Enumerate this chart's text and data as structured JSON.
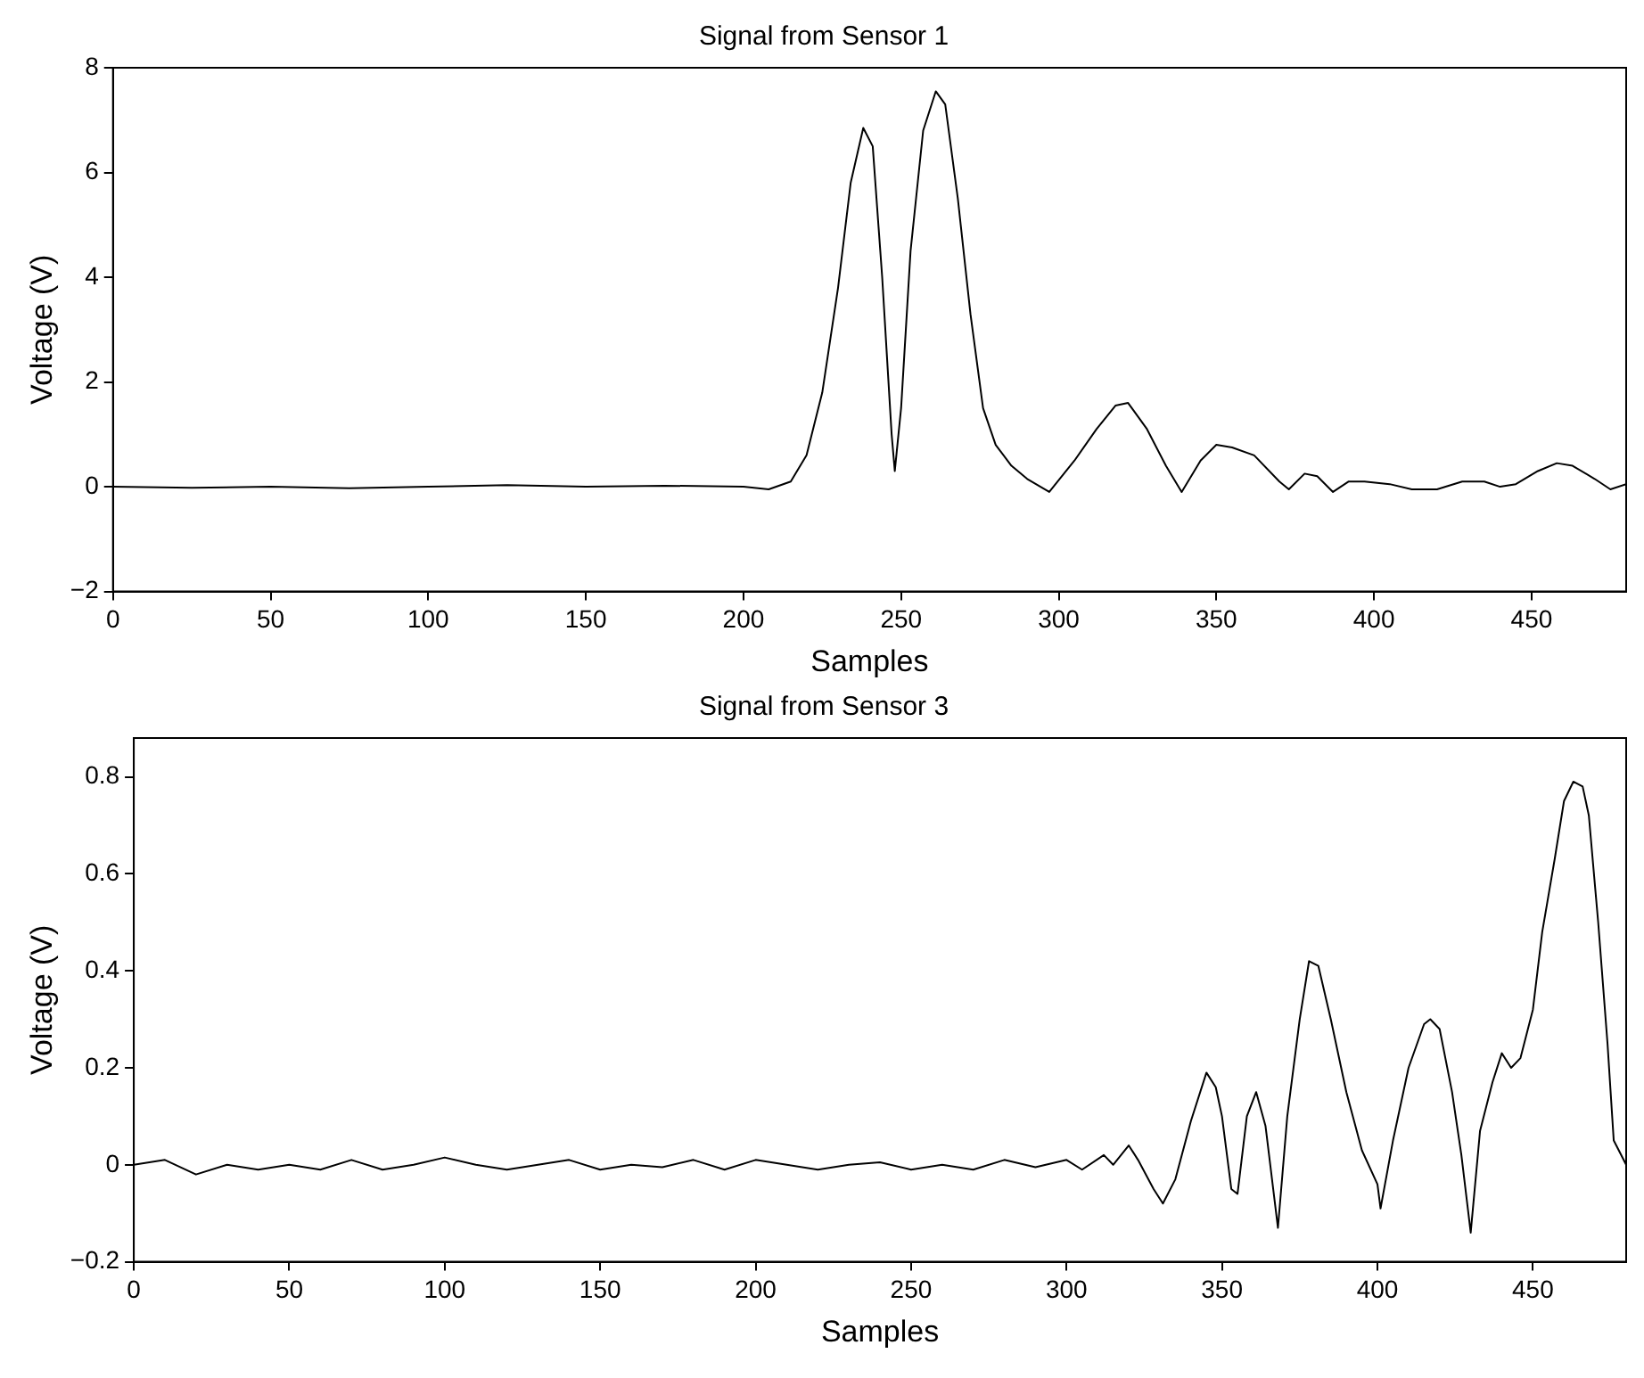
{
  "chart_data": [
    {
      "type": "line",
      "title": "Signal from Sensor 1",
      "xlabel": "Samples",
      "ylabel": "Voltage (V)",
      "xlim": [
        0,
        480
      ],
      "xticks": [
        0,
        50,
        100,
        150,
        200,
        250,
        300,
        350,
        400,
        450
      ],
      "ylim": [
        -2,
        8
      ],
      "yticks": [
        -2,
        0,
        2,
        4,
        6,
        8
      ],
      "grid": false,
      "legend": false,
      "marker": "none",
      "line_style": "solid",
      "series": [
        {
          "color": "#000000",
          "x": [
            0,
            25,
            50,
            75,
            100,
            125,
            150,
            175,
            200,
            208,
            215,
            220,
            225,
            230,
            234,
            238,
            241,
            244,
            247,
            248,
            250,
            253,
            257,
            261,
            264,
            268,
            272,
            276,
            280,
            285,
            290,
            297,
            305,
            312,
            318,
            322,
            328,
            334,
            339,
            345,
            350,
            355,
            362,
            370,
            373,
            378,
            382,
            387,
            392,
            397,
            405,
            412,
            420,
            428,
            435,
            440,
            445,
            452,
            458,
            463,
            470,
            475,
            480
          ],
          "values": [
            0,
            -0.02,
            0,
            -0.03,
            0,
            0.03,
            0,
            0.02,
            0,
            -0.05,
            0.1,
            0.6,
            1.8,
            3.8,
            5.8,
            6.85,
            6.5,
            4,
            1,
            0.3,
            1.5,
            4.5,
            6.8,
            7.55,
            7.3,
            5.5,
            3.3,
            1.5,
            0.8,
            0.4,
            0.15,
            -0.1,
            0.5,
            1.1,
            1.55,
            1.6,
            1.1,
            0.4,
            -0.1,
            0.5,
            0.8,
            0.75,
            0.6,
            0.1,
            -0.05,
            0.25,
            0.2,
            -0.1,
            0.1,
            0.1,
            0.05,
            -0.05,
            -0.05,
            0.1,
            0.1,
            0,
            0.05,
            0.3,
            0.45,
            0.4,
            0.15,
            -0.05,
            0.05
          ]
        }
      ]
    },
    {
      "type": "line",
      "title": "Signal from Sensor 3",
      "xlabel": "Samples",
      "ylabel": "Voltage (V)",
      "xlim": [
        0,
        480
      ],
      "xticks": [
        0,
        50,
        100,
        150,
        200,
        250,
        300,
        350,
        400,
        450
      ],
      "ylim": [
        -0.2,
        0.88
      ],
      "yticks": [
        -0.2,
        0,
        0.2,
        0.4,
        0.6,
        0.8
      ],
      "grid": false,
      "legend": false,
      "marker": "none",
      "line_style": "solid",
      "series": [
        {
          "color": "#000000",
          "x": [
            0,
            10,
            20,
            30,
            40,
            50,
            60,
            70,
            80,
            90,
            100,
            110,
            120,
            130,
            140,
            150,
            160,
            170,
            180,
            190,
            200,
            210,
            220,
            230,
            240,
            250,
            260,
            270,
            280,
            290,
            300,
            305,
            312,
            315,
            320,
            323,
            328,
            331,
            335,
            340,
            345,
            348,
            350,
            353,
            355,
            358,
            361,
            364,
            368,
            371,
            375,
            378,
            381,
            385,
            390,
            395,
            400,
            401,
            405,
            410,
            415,
            417,
            420,
            424,
            427,
            430,
            433,
            437,
            440,
            443,
            446,
            450,
            453,
            457,
            460,
            463,
            466,
            468,
            471,
            474,
            476,
            480
          ],
          "values": [
            0,
            0.01,
            -0.02,
            0,
            -0.01,
            0,
            -0.01,
            0.01,
            -0.01,
            0,
            0.015,
            0,
            -0.01,
            0,
            0.01,
            -0.01,
            0,
            -0.005,
            0.01,
            -0.01,
            0.01,
            0,
            -0.01,
            0,
            0.005,
            -0.01,
            0,
            -0.01,
            0.01,
            -0.005,
            0.01,
            -0.01,
            0.02,
            0,
            0.04,
            0.01,
            -0.05,
            -0.08,
            -0.03,
            0.09,
            0.19,
            0.16,
            0.1,
            -0.05,
            -0.06,
            0.1,
            0.15,
            0.08,
            -0.13,
            0.1,
            0.3,
            0.42,
            0.41,
            0.3,
            0.15,
            0.03,
            -0.04,
            -0.09,
            0.05,
            0.2,
            0.29,
            0.3,
            0.28,
            0.15,
            0.02,
            -0.14,
            0.07,
            0.17,
            0.23,
            0.2,
            0.22,
            0.32,
            0.48,
            0.63,
            0.75,
            0.79,
            0.78,
            0.72,
            0.5,
            0.25,
            0.05,
            0
          ]
        }
      ]
    }
  ]
}
